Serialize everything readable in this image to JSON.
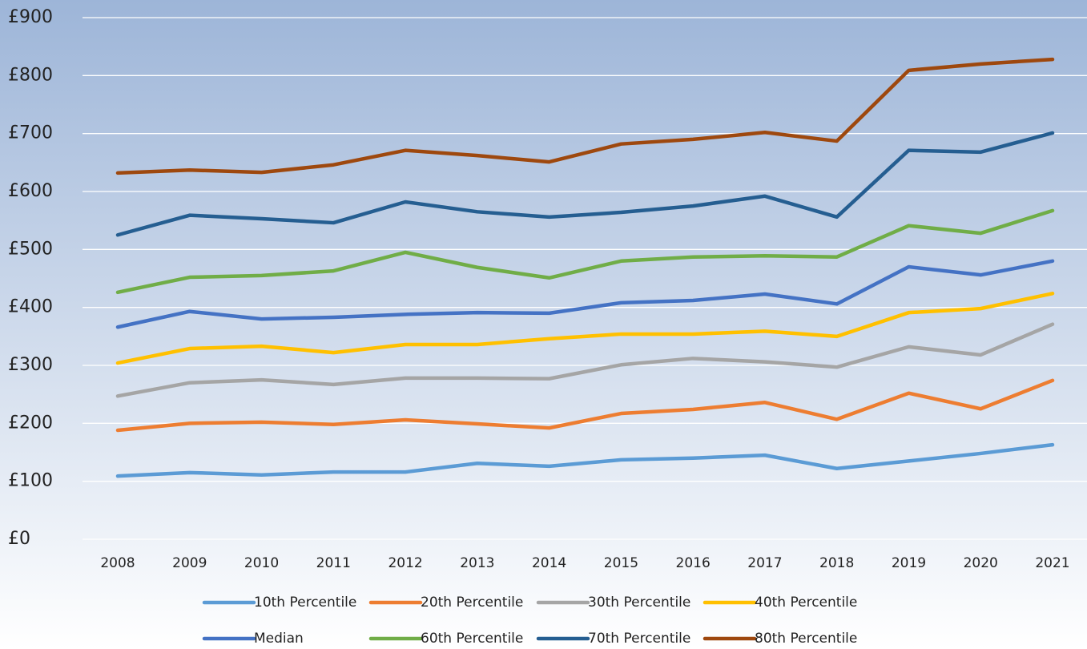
{
  "chart_data": {
    "type": "line",
    "x": [
      "2008",
      "2009",
      "2010",
      "2011",
      "2012",
      "2013",
      "2014",
      "2015",
      "2016",
      "2017",
      "2018",
      "2019",
      "2020",
      "2021"
    ],
    "series": [
      {
        "name": "10th Percentile",
        "color": "#5b9bd5",
        "values": [
          109,
          115,
          111,
          116,
          116,
          131,
          126,
          137,
          140,
          145,
          122,
          135,
          148,
          163
        ]
      },
      {
        "name": "20th Percentile",
        "color": "#ed7d31",
        "values": [
          188,
          200,
          202,
          198,
          206,
          199,
          192,
          217,
          224,
          236,
          207,
          252,
          225,
          274
        ]
      },
      {
        "name": "30th Percentile",
        "color": "#a5a5a5",
        "values": [
          247,
          270,
          275,
          267,
          278,
          278,
          277,
          301,
          312,
          306,
          297,
          332,
          318,
          371
        ]
      },
      {
        "name": "40th Percentile",
        "color": "#ffc000",
        "values": [
          304,
          329,
          333,
          322,
          336,
          336,
          346,
          354,
          354,
          359,
          350,
          391,
          398,
          424
        ]
      },
      {
        "name": "Median",
        "color": "#4472c4",
        "values": [
          366,
          393,
          380,
          383,
          388,
          391,
          390,
          408,
          412,
          423,
          406,
          470,
          456,
          480
        ]
      },
      {
        "name": "60th Percentile",
        "color": "#70ad47",
        "values": [
          426,
          452,
          455,
          463,
          495,
          469,
          451,
          480,
          487,
          489,
          487,
          541,
          528,
          567
        ]
      },
      {
        "name": "70th Percentile",
        "color": "#255e91",
        "values": [
          525,
          559,
          553,
          546,
          582,
          565,
          556,
          564,
          575,
          592,
          556,
          671,
          668,
          701
        ]
      },
      {
        "name": "80th Percentile",
        "color": "#9e480e",
        "values": [
          632,
          637,
          633,
          646,
          671,
          662,
          651,
          682,
          690,
          702,
          687,
          809,
          820,
          828
        ]
      }
    ],
    "ylim": [
      0,
      900
    ],
    "yticks": [
      {
        "value": 0,
        "label": "£0"
      },
      {
        "value": 100,
        "label": "£100"
      },
      {
        "value": 200,
        "label": "£200"
      },
      {
        "value": 300,
        "label": "£300"
      },
      {
        "value": 400,
        "label": "£400"
      },
      {
        "value": 500,
        "label": "£500"
      },
      {
        "value": 600,
        "label": "£600"
      },
      {
        "value": 700,
        "label": "£700"
      },
      {
        "value": 800,
        "label": "£800"
      },
      {
        "value": 900,
        "label": "£900"
      }
    ],
    "grid": true
  }
}
